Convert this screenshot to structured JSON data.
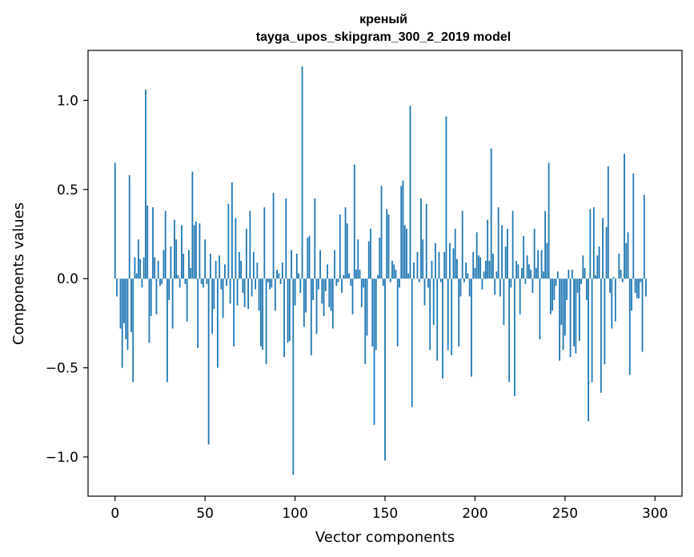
{
  "chart_data": {
    "type": "bar",
    "title": "креный",
    "subtitle": "tayga_upos_skipgram_300_2_2019 model",
    "xlabel": "Vector components",
    "ylabel": "Components values",
    "xlim": [
      -15,
      315
    ],
    "ylim": [
      -1.22,
      1.28
    ],
    "xticks": [
      0,
      50,
      100,
      150,
      200,
      250,
      300
    ],
    "yticks": [
      -1.0,
      -0.5,
      0.0,
      0.5,
      1.0
    ],
    "ytick_labels": [
      "−1.0",
      "−0.5",
      "0.0",
      "0.5",
      "1.0"
    ],
    "grid": false,
    "color": "#1f77b4",
    "values": [
      0.65,
      -0.1,
      0.0,
      -0.28,
      -0.5,
      -0.25,
      -0.34,
      -0.4,
      0.58,
      -0.3,
      -0.58,
      0.12,
      0.03,
      0.22,
      0.11,
      -0.05,
      0.12,
      1.06,
      0.41,
      -0.36,
      -0.21,
      0.4,
      0.12,
      -0.2,
      0.1,
      -0.04,
      -0.03,
      0.16,
      0.38,
      -0.58,
      -0.12,
      0.18,
      -0.28,
      0.33,
      0.22,
      0.02,
      -0.05,
      0.3,
      0.14,
      -0.03,
      -0.24,
      0.16,
      0.06,
      0.6,
      0.3,
      0.32,
      -0.39,
      0.31,
      -0.03,
      -0.05,
      0.22,
      -0.03,
      -0.93,
      0.14,
      -0.31,
      -0.17,
      0.1,
      -0.5,
      0.13,
      -0.06,
      -0.22,
      0.08,
      -0.04,
      0.42,
      -0.14,
      0.54,
      -0.38,
      0.34,
      -0.15,
      0.15,
      0.1,
      -0.08,
      -0.16,
      0.28,
      -0.17,
      0.38,
      -0.1,
      0.15,
      -0.06,
      0.09,
      -0.18,
      -0.38,
      -0.4,
      0.4,
      -0.48,
      -0.02,
      -0.06,
      -0.05,
      0.48,
      -0.18,
      0.05,
      0.03,
      -0.03,
      0.09,
      -0.44,
      0.45,
      -0.36,
      -0.35,
      0.16,
      -1.1,
      -0.15,
      0.14,
      0.03,
      -0.08,
      1.19,
      -0.27,
      -0.19,
      0.23,
      0.24,
      -0.43,
      -0.12,
      0.45,
      -0.31,
      -0.06,
      0.16,
      -0.14,
      -0.21,
      -0.07,
      0.08,
      -0.16,
      -0.18,
      -0.28,
      0.16,
      -0.04,
      -0.02,
      0.36,
      -0.08,
      0.02,
      0.4,
      0.31,
      0.03,
      -0.04,
      -0.2,
      0.64,
      0.05,
      0.22,
      0.05,
      -0.16,
      -0.05,
      -0.48,
      -0.32,
      0.21,
      0.28,
      -0.38,
      -0.82,
      -0.4,
      0.02,
      0.23,
      0.52,
      -0.04,
      -1.02,
      0.39,
      0.36,
      -0.02,
      0.1,
      0.08,
      0.05,
      -0.38,
      -0.05,
      0.52,
      0.55,
      0.3,
      0.28,
      0.03,
      0.97,
      -0.72,
      0.09,
      0.0,
      0.15,
      -0.02,
      0.45,
      0.22,
      -0.15,
      0.42,
      -0.05,
      -0.4,
      0.1,
      -0.26,
      0.2,
      -0.46,
      0.15,
      -0.02,
      -0.56,
      0.15,
      0.91,
      -0.4,
      0.2,
      -0.43,
      0.17,
      0.28,
      0.11,
      -0.38,
      -0.1,
      0.38,
      -0.02,
      0.09,
      0.03,
      -0.1,
      -0.55,
      0.15,
      0.06,
      0.26,
      0.13,
      0.12,
      -0.06,
      0.04,
      0.1,
      0.33,
      0.1,
      0.73,
      0.14,
      -0.09,
      0.04,
      0.4,
      -0.1,
      0.3,
      -0.26,
      0.18,
      0.28,
      -0.58,
      -0.05,
      0.38,
      -0.66,
      0.1,
      0.08,
      -0.2,
      0.06,
      0.24,
      -0.03,
      0.13,
      0.08,
      0.05,
      -0.08,
      0.28,
      0.06,
      0.16,
      -0.34,
      0.16,
      0.04,
      0.38,
      0.2,
      0.65,
      -0.2,
      -0.18,
      -0.12,
      -0.04,
      0.04,
      -0.46,
      -0.26,
      -0.4,
      -0.32,
      -0.12,
      0.05,
      -0.44,
      0.05,
      -0.38,
      -0.42,
      -0.08,
      -0.35,
      -0.03,
      0.13,
      0.06,
      -0.12,
      -0.8,
      0.39,
      -0.58,
      0.4,
      0.02,
      0.13,
      0.18,
      -0.64,
      0.34,
      -0.48,
      0.29,
      0.63,
      -0.08,
      -0.28,
      0.01,
      -0.24,
      0.0,
      0.14,
      0.05,
      -0.02,
      0.7,
      0.2,
      0.26,
      -0.54,
      -0.18,
      0.59,
      -0.08,
      -0.11,
      -0.11,
      -0.02,
      -0.41,
      0.47,
      -0.1
    ]
  }
}
